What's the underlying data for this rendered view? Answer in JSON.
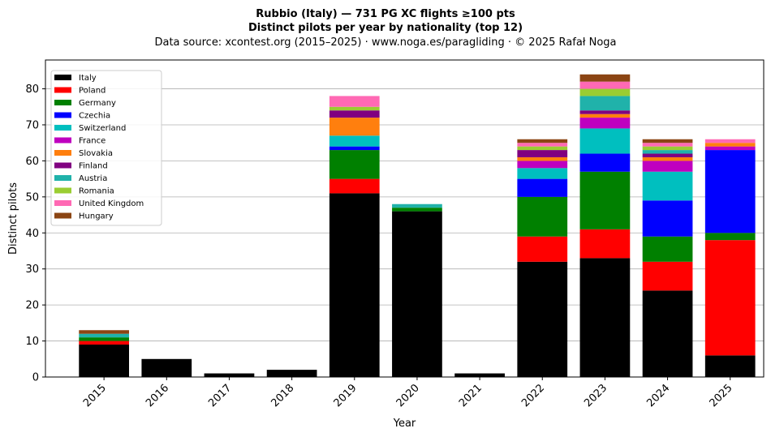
{
  "chart_data": {
    "type": "bar",
    "stacked": true,
    "title": "Rubbio (Italy)  —  731 PG XC flights ≥100 pts",
    "subtitle": "Distinct pilots per year by nationality (top 12)",
    "source_line": "Data source: xcontest.org (2015–2025)  ·  www.noga.es/paragliding  ·  © 2025 Rafał Noga",
    "xlabel": "Year",
    "ylabel": "Distinct pilots",
    "ylim": [
      0,
      88
    ],
    "yticks": [
      0,
      10,
      20,
      30,
      40,
      50,
      60,
      70,
      80
    ],
    "grid": "y",
    "legend_position": "top-left",
    "categories": [
      "2015",
      "2016",
      "2017",
      "2018",
      "2019",
      "2020",
      "2021",
      "2022",
      "2023",
      "2024",
      "2025"
    ],
    "series": [
      {
        "name": "Italy",
        "color": "#000000",
        "values": [
          9,
          5,
          1,
          2,
          51,
          46,
          1,
          32,
          33,
          24,
          6
        ]
      },
      {
        "name": "Poland",
        "color": "#ff0000",
        "values": [
          1,
          0,
          0,
          0,
          4,
          0,
          0,
          7,
          8,
          8,
          32
        ]
      },
      {
        "name": "Germany",
        "color": "#008000",
        "values": [
          1,
          0,
          0,
          0,
          8,
          1,
          0,
          11,
          16,
          7,
          2
        ]
      },
      {
        "name": "Czechia",
        "color": "#0000ff",
        "values": [
          0,
          0,
          0,
          0,
          1,
          0,
          0,
          5,
          5,
          10,
          23
        ]
      },
      {
        "name": "Switzerland",
        "color": "#00bfbf",
        "values": [
          0,
          0,
          0,
          0,
          3,
          0,
          0,
          3,
          7,
          8,
          0
        ]
      },
      {
        "name": "France",
        "color": "#bf00bf",
        "values": [
          0,
          0,
          0,
          0,
          0,
          0,
          0,
          2,
          3,
          3,
          1
        ]
      },
      {
        "name": "Slovakia",
        "color": "#ff7f0e",
        "values": [
          0,
          0,
          0,
          0,
          5,
          0,
          0,
          1,
          1,
          1,
          1
        ]
      },
      {
        "name": "Finland",
        "color": "#800080",
        "values": [
          0,
          0,
          0,
          0,
          2,
          0,
          0,
          2,
          1,
          1,
          0
        ]
      },
      {
        "name": "Austria",
        "color": "#20b2aa",
        "values": [
          1,
          0,
          0,
          0,
          0,
          1,
          0,
          0,
          4,
          1,
          0
        ]
      },
      {
        "name": "Romania",
        "color": "#9acd32",
        "values": [
          0,
          0,
          0,
          0,
          1,
          0,
          0,
          1,
          2,
          1,
          0
        ]
      },
      {
        "name": "United Kingdom",
        "color": "#ff69b4",
        "values": [
          0,
          0,
          0,
          0,
          3,
          0,
          0,
          1,
          2,
          1,
          1
        ]
      },
      {
        "name": "Hungary",
        "color": "#8b4513",
        "values": [
          1,
          0,
          0,
          0,
          0,
          0,
          0,
          1,
          2,
          1,
          0
        ]
      }
    ]
  }
}
